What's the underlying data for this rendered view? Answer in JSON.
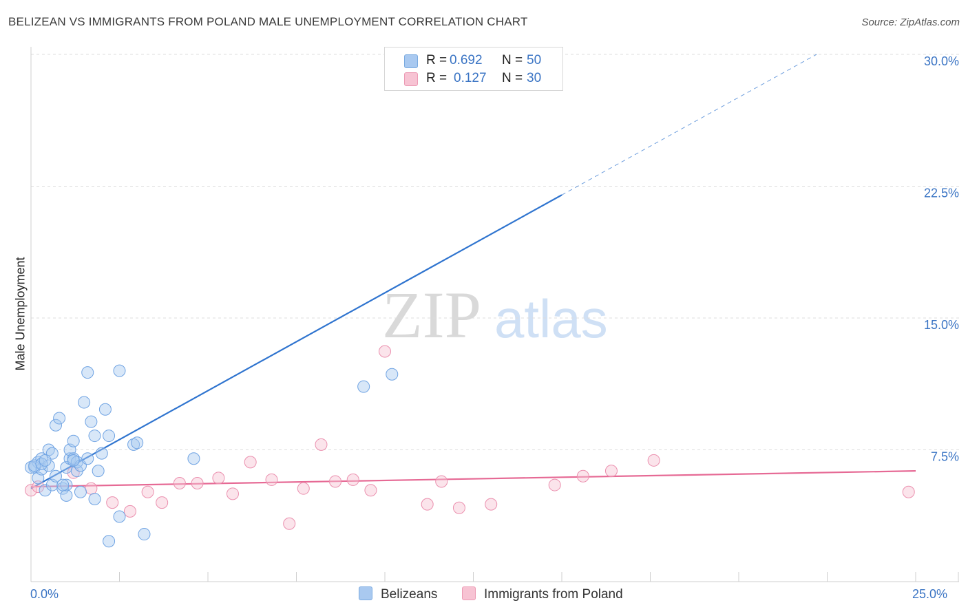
{
  "title": "BELIZEAN VS IMMIGRANTS FROM POLAND MALE UNEMPLOYMENT CORRELATION CHART",
  "source": "Source: ZipAtlas.com",
  "watermark": {
    "zip": "ZIP",
    "atlas": "atlas"
  },
  "legend": {
    "rows": [
      {
        "r_label": "R =",
        "r_value": "0.692",
        "n_label": "N =",
        "n_value": "50",
        "color": "#a9c9f0",
        "border": "#7aaae0"
      },
      {
        "r_label": "R =",
        "r_value": "0.127",
        "n_label": "N =",
        "n_value": "30",
        "color": "#f7c3d3",
        "border": "#ec9ab4"
      }
    ]
  },
  "bottom_legend": [
    {
      "label": "Belizeans",
      "color": "#a9c9f0",
      "border": "#7aaae0"
    },
    {
      "label": "Immigrants from Poland",
      "color": "#f7c3d3",
      "border": "#ec9ab4"
    }
  ],
  "colors": {
    "blue_line": "#2f74cf",
    "pink_line": "#e66a95",
    "blue_point": "#6fa3e3",
    "pink_point": "#eb8fae",
    "axis_text": "#3a74c4",
    "grid": "#dcdcdc"
  },
  "chart_data": {
    "type": "scatter",
    "title": "BELIZEAN VS IMMIGRANTS FROM POLAND MALE UNEMPLOYMENT CORRELATION CHART",
    "xlabel": "",
    "ylabel": "Male Unemployment",
    "xlim": [
      0,
      25
    ],
    "ylim": [
      0,
      30
    ],
    "x_tick_labels": [
      "0.0%",
      "25.0%"
    ],
    "y_ticks": [
      7.5,
      15.0,
      22.5,
      30.0
    ],
    "y_tick_labels": [
      "7.5%",
      "15.0%",
      "22.5%",
      "30.0%"
    ],
    "grid": "horizontal dashed",
    "legend_placement": "top-center",
    "series": [
      {
        "name": "Belizeans",
        "r": 0.692,
        "n": 50,
        "trend": {
          "x": [
            0,
            15
          ],
          "y": [
            5.3,
            22.0
          ],
          "dashed_extension": {
            "x": [
              15,
              22.2
            ],
            "y": [
              22.0,
              30.0
            ]
          }
        },
        "points": [
          [
            0.1,
            6.5
          ],
          [
            0.2,
            6.8
          ],
          [
            0.2,
            5.9
          ],
          [
            0.3,
            7.0
          ],
          [
            0.3,
            6.4
          ],
          [
            0.4,
            5.2
          ],
          [
            0.5,
            7.5
          ],
          [
            0.5,
            6.6
          ],
          [
            0.6,
            7.3
          ],
          [
            0.6,
            5.5
          ],
          [
            0.7,
            8.9
          ],
          [
            0.7,
            6.0
          ],
          [
            0.8,
            9.3
          ],
          [
            0.9,
            5.3
          ],
          [
            1.0,
            6.5
          ],
          [
            1.0,
            4.9
          ],
          [
            1.0,
            5.5
          ],
          [
            1.1,
            7.0
          ],
          [
            1.1,
            7.5
          ],
          [
            1.2,
            7.0
          ],
          [
            1.2,
            8.0
          ],
          [
            1.3,
            6.3
          ],
          [
            1.3,
            6.8
          ],
          [
            1.4,
            5.1
          ],
          [
            1.4,
            6.6
          ],
          [
            1.5,
            10.2
          ],
          [
            1.6,
            7.0
          ],
          [
            1.6,
            11.9
          ],
          [
            1.7,
            9.1
          ],
          [
            1.8,
            4.7
          ],
          [
            1.8,
            8.3
          ],
          [
            1.9,
            6.3
          ],
          [
            2.0,
            7.3
          ],
          [
            2.1,
            9.8
          ],
          [
            2.2,
            8.3
          ],
          [
            2.2,
            2.3
          ],
          [
            2.5,
            3.7
          ],
          [
            2.5,
            12.0
          ],
          [
            2.9,
            7.8
          ],
          [
            3.0,
            7.9
          ],
          [
            3.2,
            2.7
          ],
          [
            4.6,
            7.0
          ],
          [
            0.0,
            6.5
          ],
          [
            0.1,
            6.6
          ],
          [
            0.3,
            6.7
          ],
          [
            0.9,
            5.5
          ],
          [
            1.2,
            6.9
          ],
          [
            9.4,
            11.1
          ],
          [
            10.2,
            11.8
          ],
          [
            0.4,
            6.9
          ]
        ]
      },
      {
        "name": "Immigrants from Poland",
        "r": 0.127,
        "n": 30,
        "trend": {
          "x": [
            0,
            25
          ],
          "y": [
            5.4,
            6.3
          ]
        },
        "points": [
          [
            0.0,
            5.2
          ],
          [
            1.2,
            6.2
          ],
          [
            1.7,
            5.3
          ],
          [
            2.3,
            4.5
          ],
          [
            2.8,
            4.0
          ],
          [
            3.3,
            5.1
          ],
          [
            3.7,
            4.5
          ],
          [
            4.2,
            5.6
          ],
          [
            4.7,
            5.6
          ],
          [
            5.3,
            5.9
          ],
          [
            5.7,
            5.0
          ],
          [
            6.2,
            6.8
          ],
          [
            6.8,
            5.8
          ],
          [
            7.3,
            3.3
          ],
          [
            7.7,
            5.3
          ],
          [
            8.2,
            7.8
          ],
          [
            8.6,
            5.7
          ],
          [
            9.1,
            5.8
          ],
          [
            9.6,
            5.2
          ],
          [
            10.0,
            13.1
          ],
          [
            11.2,
            4.4
          ],
          [
            11.6,
            5.7
          ],
          [
            12.1,
            4.2
          ],
          [
            13.0,
            4.4
          ],
          [
            14.8,
            5.5
          ],
          [
            15.6,
            6.0
          ],
          [
            16.4,
            6.3
          ],
          [
            17.6,
            6.9
          ],
          [
            24.8,
            5.1
          ],
          [
            0.2,
            5.4
          ]
        ]
      }
    ]
  }
}
